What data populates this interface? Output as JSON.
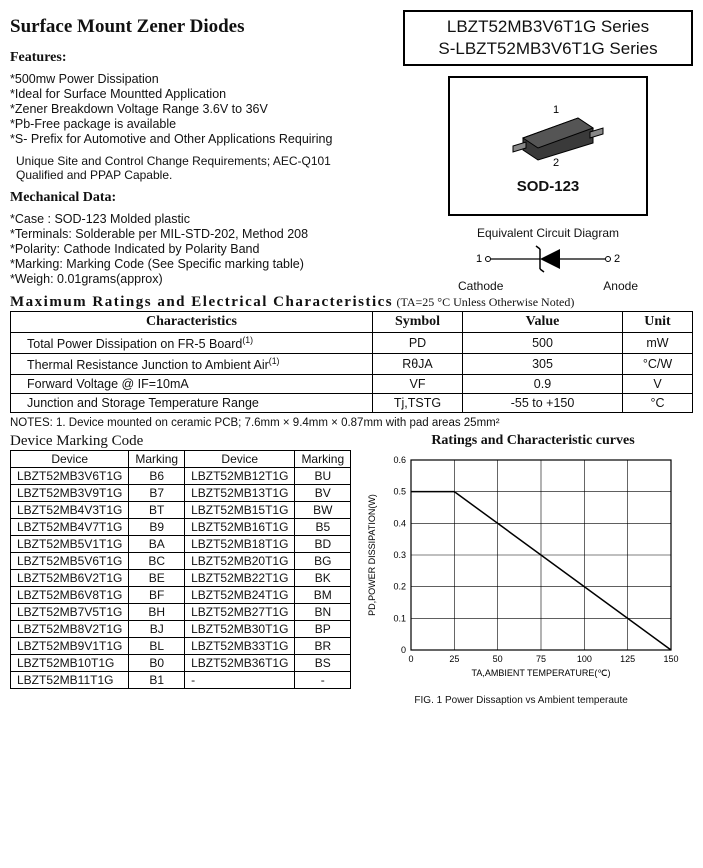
{
  "header": {
    "title": "Surface Mount Zener Diodes",
    "part1": "LBZT52MB3V6T1G Series",
    "part2": "S-LBZT52MB3V6T1G Series"
  },
  "features": {
    "head": "Features:",
    "items": [
      "500mw Power Dissipation",
      "Ideal for Surface Mountted Application",
      "Zener Breakdown Voltage Range 3.6V to 36V",
      "Pb-Free package is available",
      "S- Prefix for Automotive and Other Applications Requiring"
    ],
    "cont1": "Unique Site and Control Change Requirements; AEC-Q101",
    "cont2": "Qualified and PPAP Capable."
  },
  "mech": {
    "head": "Mechanical Data:",
    "items": [
      "Case : SOD-123 Molded plastic",
      "Terminals: Solderable per MIL-STD-202, Method 208",
      "Polarity: Cathode Indicated by Polarity Band",
      "Marking: Marking Code (See Specific marking table)",
      "Weigh: 0.01grams(approx)"
    ]
  },
  "package": {
    "pin1": "1",
    "pin2": "2",
    "name": "SOD-123"
  },
  "circuit": {
    "title": "Equivalent Circuit Diagram",
    "pin1": "1",
    "pin2": "2",
    "left": "Cathode",
    "right": "Anode"
  },
  "ratings": {
    "head": "Maximum Ratings and Electrical Characteristics",
    "cond": "(TA=25 °C Unless Otherwise Noted)",
    "cols": {
      "c1": "Characteristics",
      "c2": "Symbol",
      "c3": "Value",
      "c4": "Unit"
    },
    "rows": [
      {
        "c": "Total Power Dissipation on FR-5 Board",
        "sup": "(1)",
        "s": "PD",
        "v": "500",
        "u": "mW"
      },
      {
        "c": "Thermal Resistance Junction to Ambient Air",
        "sup": "(1)",
        "s": "RθJA",
        "v": "305",
        "u": "°C/W"
      },
      {
        "c": "Forward Voltage @ IF=10mA",
        "sup": "",
        "s": "VF",
        "v": "0.9",
        "u": "V"
      },
      {
        "c": "Junction and Storage Temperature Range",
        "sup": "",
        "s": "Tj,TSTG",
        "v": "-55 to +150",
        "u": "°C"
      }
    ],
    "notes": "NOTES: 1. Device mounted on ceramic PCB; 7.6mm × 9.4mm × 0.87mm with pad areas 25mm²"
  },
  "marking": {
    "head": "Device Marking Code",
    "cols": {
      "d": "Device",
      "m": "Marking"
    },
    "left": [
      [
        "LBZT52MB3V6T1G",
        "B6"
      ],
      [
        "LBZT52MB3V9T1G",
        "B7"
      ],
      [
        "LBZT52MB4V3T1G",
        "BT"
      ],
      [
        "LBZT52MB4V7T1G",
        "B9"
      ],
      [
        "LBZT52MB5V1T1G",
        "BA"
      ],
      [
        "LBZT52MB5V6T1G",
        "BC"
      ],
      [
        "LBZT52MB6V2T1G",
        "BE"
      ],
      [
        "LBZT52MB6V8T1G",
        "BF"
      ],
      [
        "LBZT52MB7V5T1G",
        "BH"
      ],
      [
        "LBZT52MB8V2T1G",
        "BJ"
      ],
      [
        "LBZT52MB9V1T1G",
        "BL"
      ],
      [
        "LBZT52MB10T1G",
        "B0"
      ],
      [
        "LBZT52MB11T1G",
        "B1"
      ]
    ],
    "right": [
      [
        "LBZT52MB12T1G",
        "BU"
      ],
      [
        "LBZT52MB13T1G",
        "BV"
      ],
      [
        "LBZT52MB15T1G",
        "BW"
      ],
      [
        "LBZT52MB16T1G",
        "B5"
      ],
      [
        "LBZT52MB18T1G",
        "BD"
      ],
      [
        "LBZT52MB20T1G",
        "BG"
      ],
      [
        "LBZT52MB22T1G",
        "BK"
      ],
      [
        "LBZT52MB24T1G",
        "BM"
      ],
      [
        "LBZT52MB27T1G",
        "BN"
      ],
      [
        "LBZT52MB30T1G",
        "BP"
      ],
      [
        "LBZT52MB33T1G",
        "BR"
      ],
      [
        "LBZT52MB36T1G",
        "BS"
      ],
      [
        "-",
        "-"
      ]
    ]
  },
  "chart": {
    "head": "Ratings and Characteristic curves",
    "type": "line",
    "xlabel": "TA,AMBIENT TEMPERATURE(℃)",
    "ylabel": "PD,POWER DISSIPATION(W)",
    "xlim": [
      0,
      150
    ],
    "ylim": [
      0,
      0.6
    ],
    "xticks": [
      0,
      25,
      50,
      75,
      100,
      125,
      150
    ],
    "yticks": [
      0,
      0.1,
      0.2,
      0.3,
      0.4,
      0.5,
      0.6
    ],
    "series": {
      "points": [
        [
          0,
          0.5
        ],
        [
          25,
          0.5
        ],
        [
          150,
          0
        ]
      ],
      "color": "#000000",
      "width": 1.5
    },
    "grid_color": "#000000",
    "bg": "#ffffff",
    "label_fontsize": 9,
    "caption": "FIG. 1 Power Dissaption vs Ambient temperaute"
  }
}
